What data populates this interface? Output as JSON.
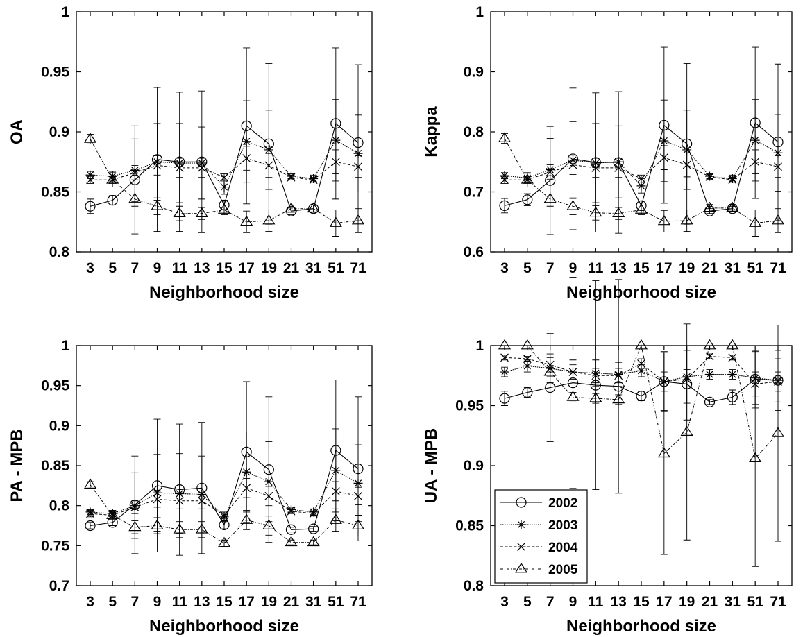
{
  "chart_data": [
    {
      "type": "line",
      "ylabel": "OA",
      "xlabel": "Neighborhood size",
      "categories": [
        "3",
        "5",
        "7",
        "9",
        "11",
        "13",
        "15",
        "17",
        "19",
        "21",
        "31",
        "51",
        "71"
      ],
      "ylim": [
        0.8,
        1
      ],
      "yticks": [
        "0.8",
        "0.85",
        "0.9",
        "0.95",
        "1"
      ],
      "series": [
        {
          "name": "2002",
          "values": [
            0.838,
            0.843,
            0.86,
            0.877,
            0.875,
            0.875,
            0.839,
            0.905,
            0.89,
            0.834,
            0.836,
            0.907,
            0.891
          ],
          "errors": [
            0.006,
            0.004,
            0.045,
            0.06,
            0.058,
            0.059,
            0.004,
            0.065,
            0.067,
            0.003,
            0.003,
            0.063,
            0.065
          ]
        },
        {
          "name": "2003",
          "values": [
            0.864,
            0.863,
            0.868,
            0.875,
            0.874,
            0.874,
            0.854,
            0.892,
            0.885,
            0.863,
            0.861,
            0.893,
            0.882
          ],
          "errors": [
            0.003,
            0.004,
            0.026,
            0.032,
            0.033,
            0.03,
            0.006,
            0.034,
            0.033,
            0.002,
            0.003,
            0.034,
            0.032
          ]
        },
        {
          "name": "2004",
          "values": [
            0.86,
            0.86,
            0.866,
            0.872,
            0.87,
            0.87,
            0.862,
            0.878,
            0.872,
            0.862,
            0.86,
            0.875,
            0.871
          ],
          "errors": [
            0.003,
            0.003,
            0.006,
            0.008,
            0.008,
            0.008,
            0.003,
            0.01,
            0.01,
            0.002,
            0.002,
            0.01,
            0.009
          ]
        },
        {
          "name": "2005",
          "values": [
            0.894,
            0.86,
            0.844,
            0.838,
            0.832,
            0.832,
            0.835,
            0.825,
            0.826,
            0.836,
            0.836,
            0.824,
            0.826
          ],
          "errors": [
            0.004,
            0.006,
            0.006,
            0.007,
            0.006,
            0.005,
            0.004,
            0.009,
            0.009,
            0.003,
            0.003,
            0.011,
            0.01
          ]
        }
      ]
    },
    {
      "type": "line",
      "ylabel": "Kappa",
      "xlabel": "Neighborhood size",
      "categories": [
        "3",
        "5",
        "7",
        "9",
        "11",
        "13",
        "15",
        "17",
        "19",
        "21",
        "31",
        "51",
        "71"
      ],
      "ylim": [
        0.6,
        1
      ],
      "yticks": [
        "0.6",
        "0.7",
        "0.8",
        "0.9",
        "1"
      ],
      "series": [
        {
          "name": "2002",
          "values": [
            0.677,
            0.687,
            0.719,
            0.755,
            0.749,
            0.749,
            0.677,
            0.811,
            0.78,
            0.668,
            0.672,
            0.815,
            0.783
          ],
          "errors": [
            0.012,
            0.01,
            0.09,
            0.118,
            0.116,
            0.118,
            0.008,
            0.13,
            0.134,
            0.004,
            0.004,
            0.126,
            0.13
          ]
        },
        {
          "name": "2003",
          "values": [
            0.727,
            0.723,
            0.737,
            0.753,
            0.748,
            0.75,
            0.71,
            0.785,
            0.77,
            0.726,
            0.722,
            0.786,
            0.765
          ],
          "errors": [
            0.005,
            0.008,
            0.052,
            0.064,
            0.066,
            0.06,
            0.012,
            0.068,
            0.066,
            0.004,
            0.006,
            0.068,
            0.064
          ]
        },
        {
          "name": "2004",
          "values": [
            0.72,
            0.72,
            0.733,
            0.745,
            0.74,
            0.74,
            0.722,
            0.757,
            0.745,
            0.725,
            0.72,
            0.75,
            0.742
          ],
          "errors": [
            0.006,
            0.006,
            0.012,
            0.016,
            0.016,
            0.016,
            0.006,
            0.02,
            0.02,
            0.004,
            0.004,
            0.02,
            0.018
          ]
        },
        {
          "name": "2005",
          "values": [
            0.789,
            0.72,
            0.688,
            0.676,
            0.665,
            0.664,
            0.67,
            0.651,
            0.652,
            0.673,
            0.673,
            0.648,
            0.652
          ],
          "errors": [
            0.008,
            0.012,
            0.012,
            0.014,
            0.012,
            0.01,
            0.008,
            0.018,
            0.018,
            0.006,
            0.006,
            0.022,
            0.02
          ]
        }
      ]
    },
    {
      "type": "line",
      "ylabel": "PA - MPB",
      "xlabel": "Neighborhood size",
      "categories": [
        "3",
        "5",
        "7",
        "9",
        "11",
        "13",
        "15",
        "17",
        "19",
        "21",
        "31",
        "51",
        "71"
      ],
      "ylim": [
        0.7,
        1
      ],
      "yticks": [
        "0.7",
        "0.75",
        "0.8",
        "0.85",
        "0.9",
        "0.95",
        "1"
      ],
      "series": [
        {
          "name": "2002",
          "values": [
            0.775,
            0.779,
            0.801,
            0.825,
            0.82,
            0.822,
            0.776,
            0.867,
            0.845,
            0.77,
            0.771,
            0.869,
            0.846
          ],
          "errors": [
            0.004,
            0.004,
            0.061,
            0.083,
            0.082,
            0.082,
            0.005,
            0.088,
            0.091,
            0.003,
            0.003,
            0.088,
            0.09
          ]
        },
        {
          "name": "2003",
          "values": [
            0.792,
            0.79,
            0.8,
            0.816,
            0.815,
            0.814,
            0.786,
            0.842,
            0.83,
            0.795,
            0.792,
            0.844,
            0.828
          ],
          "errors": [
            0.003,
            0.004,
            0.041,
            0.048,
            0.05,
            0.048,
            0.006,
            0.05,
            0.05,
            0.003,
            0.004,
            0.052,
            0.048
          ]
        },
        {
          "name": "2004",
          "values": [
            0.79,
            0.788,
            0.798,
            0.808,
            0.806,
            0.806,
            0.788,
            0.822,
            0.812,
            0.793,
            0.79,
            0.818,
            0.812
          ],
          "errors": [
            0.004,
            0.004,
            0.008,
            0.01,
            0.01,
            0.01,
            0.004,
            0.012,
            0.012,
            0.003,
            0.003,
            0.012,
            0.011
          ]
        },
        {
          "name": "2005",
          "values": [
            0.826,
            0.788,
            0.773,
            0.775,
            0.77,
            0.77,
            0.753,
            0.782,
            0.775,
            0.754,
            0.754,
            0.782,
            0.775
          ],
          "errors": [
            0.004,
            0.006,
            0.008,
            0.01,
            0.01,
            0.01,
            0.004,
            0.012,
            0.012,
            0.003,
            0.003,
            0.014,
            0.013
          ]
        }
      ]
    },
    {
      "type": "line",
      "ylabel": "UA - MPB",
      "xlabel": "Neighborhood size",
      "categories": [
        "3",
        "5",
        "7",
        "9",
        "11",
        "13",
        "15",
        "17",
        "19",
        "21",
        "31",
        "51",
        "71"
      ],
      "ylim": [
        0.8,
        1
      ],
      "yticks": [
        "0.8",
        "0.85",
        "0.9",
        "0.95",
        "1"
      ],
      "series": [
        {
          "name": "2002",
          "values": [
            0.956,
            0.961,
            0.965,
            0.969,
            0.967,
            0.966,
            0.958,
            0.97,
            0.968,
            0.953,
            0.957,
            0.972,
            0.971
          ],
          "errors": [
            0.006,
            0.004,
            0.045,
            0.088,
            0.087,
            0.089,
            0.004,
            0.025,
            0.03,
            0.002,
            0.006,
            0.024,
            0.025
          ]
        },
        {
          "name": "2003",
          "values": [
            0.978,
            0.983,
            0.981,
            0.978,
            0.977,
            0.976,
            0.979,
            0.97,
            0.974,
            0.976,
            0.976,
            0.973,
            0.971
          ],
          "errors": [
            0.004,
            0.005,
            0.012,
            0.01,
            0.011,
            0.01,
            0.005,
            0.024,
            0.022,
            0.004,
            0.004,
            0.022,
            0.018
          ]
        },
        {
          "name": "2004",
          "values": [
            0.99,
            0.989,
            0.984,
            0.978,
            0.975,
            0.975,
            0.985,
            0.97,
            0.972,
            0.991,
            0.99,
            0.968,
            0.97
          ],
          "errors": [
            0.002,
            0.002,
            0.006,
            0.006,
            0.006,
            0.006,
            0.004,
            0.008,
            0.008,
            0.002,
            0.002,
            0.01,
            0.008
          ]
        },
        {
          "name": "2005",
          "values": [
            1.0,
            1.0,
            0.978,
            0.957,
            0.956,
            0.955,
            1.0,
            0.91,
            0.928,
            1.0,
            1.0,
            0.906,
            0.927
          ],
          "errors": [
            0,
            0,
            0.004,
            0.004,
            0.004,
            0.004,
            0,
            0.084,
            0.09,
            0,
            0,
            0.09,
            0.09
          ]
        }
      ]
    }
  ],
  "legend": {
    "panel": 3,
    "placement": "bottom-left",
    "entries": [
      "2002",
      "2003",
      "2004",
      "2005"
    ]
  }
}
